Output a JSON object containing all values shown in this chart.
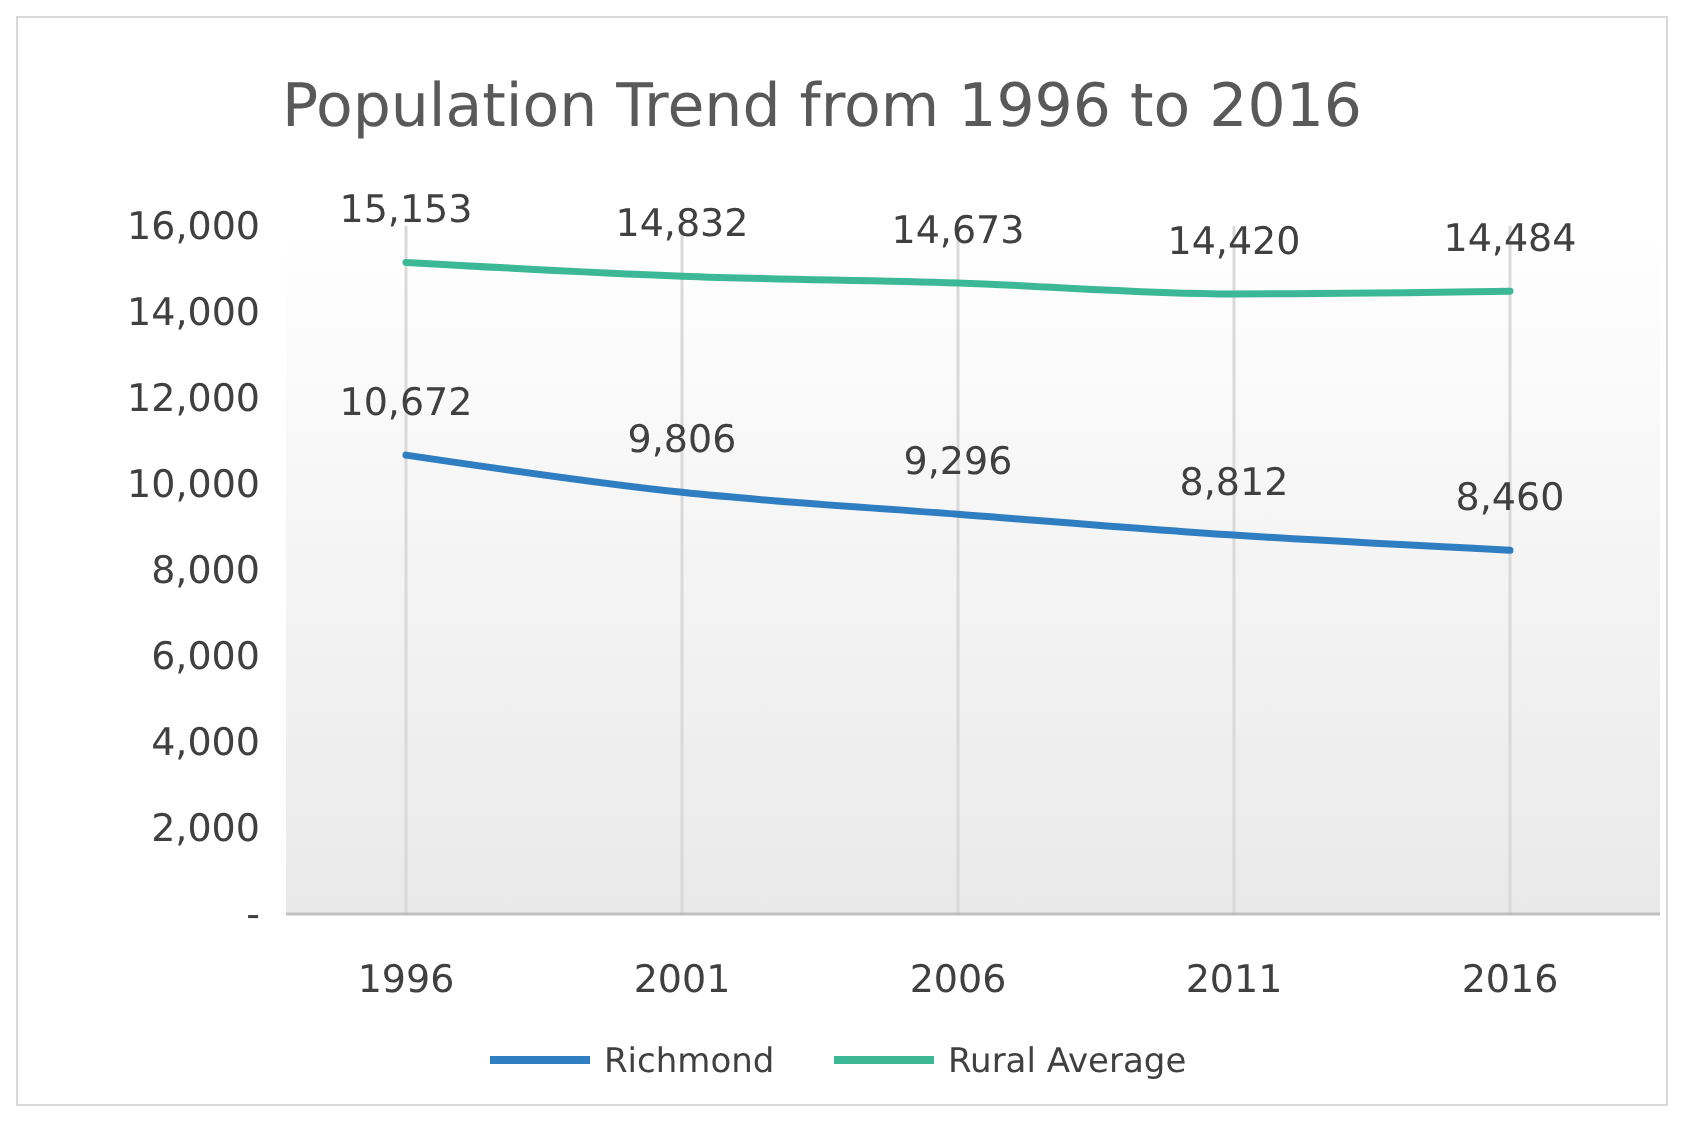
{
  "chart_data": {
    "type": "line",
    "title": "Population Trend from 1996 to 2016",
    "categories": [
      "1996",
      "2001",
      "2006",
      "2011",
      "2016"
    ],
    "series": [
      {
        "name": "Richmond",
        "color": "#2e7ec1",
        "values": [
          10672,
          9806,
          9296,
          8812,
          8460
        ],
        "value_labels": [
          "10,672",
          "9,806",
          "9,296",
          "8,812",
          "8,460"
        ]
      },
      {
        "name": "Rural Average",
        "color": "#3cb896",
        "values": [
          15153,
          14832,
          14673,
          14420,
          14484
        ],
        "value_labels": [
          "15,153",
          "14,832",
          "14,673",
          "14,420",
          "14,484"
        ]
      }
    ],
    "ylim": [
      0,
      16000
    ],
    "yticks": [
      {
        "value": 0,
        "label": "-"
      },
      {
        "value": 2000,
        "label": "2,000"
      },
      {
        "value": 4000,
        "label": "4,000"
      },
      {
        "value": 6000,
        "label": "6,000"
      },
      {
        "value": 8000,
        "label": "8,000"
      },
      {
        "value": 10000,
        "label": "10,000"
      },
      {
        "value": 12000,
        "label": "12,000"
      },
      {
        "value": 14000,
        "label": "14,000"
      },
      {
        "value": 16000,
        "label": "16,000"
      }
    ],
    "grid": "x",
    "legend": "bottom",
    "marker": "none",
    "line_style": "solid"
  }
}
